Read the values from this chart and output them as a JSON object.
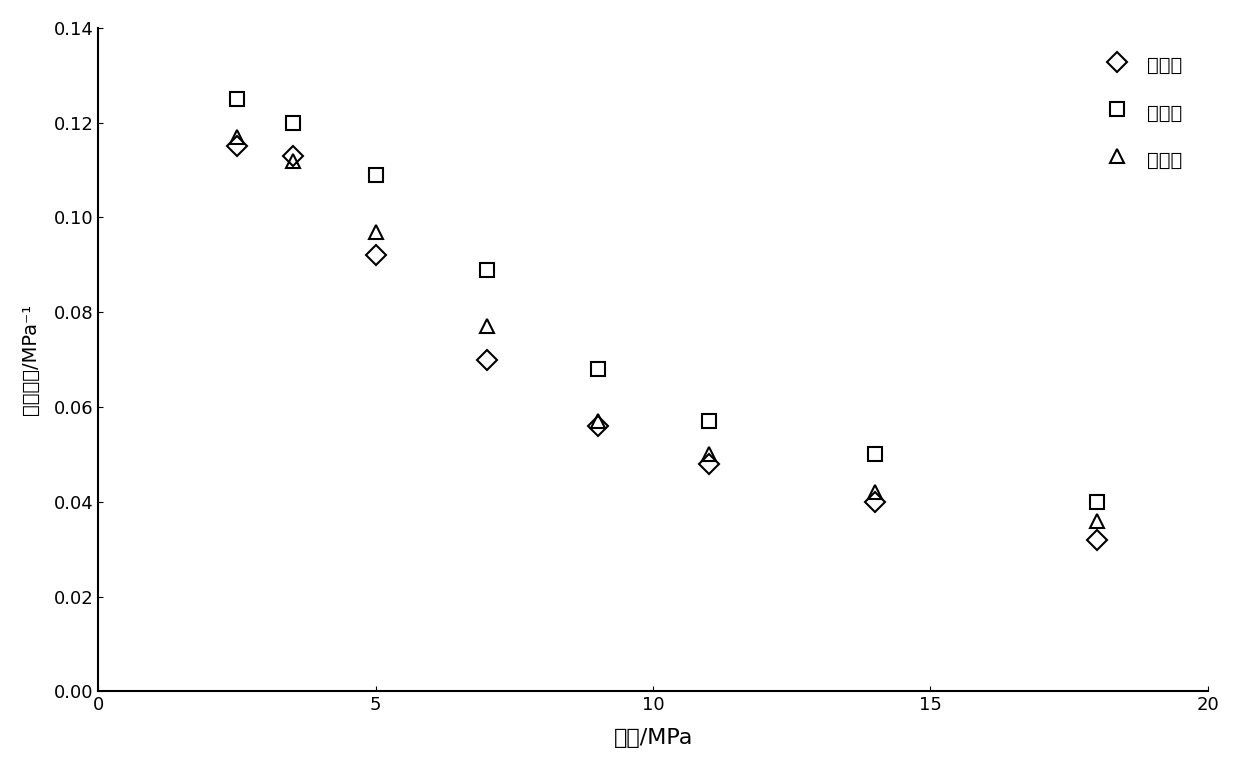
{
  "x_values": [
    2.5,
    3.5,
    5,
    7,
    9,
    11,
    14,
    18
  ],
  "small_pore": [
    0.115,
    0.113,
    0.092,
    0.07,
    0.056,
    0.048,
    0.04,
    0.032
  ],
  "large_pore": [
    0.125,
    0.12,
    0.109,
    0.089,
    0.068,
    0.057,
    0.05,
    0.04
  ],
  "total_pore": [
    0.117,
    0.112,
    0.097,
    0.077,
    0.057,
    0.05,
    0.042,
    0.036
  ],
  "xlabel": "围压/MPa",
  "ylabel": "压缩系数/MPa⁻¹",
  "legend_small": "小孔隙",
  "legend_large": "大孔隙",
  "legend_total": "总孔隙",
  "xlim": [
    0,
    20
  ],
  "ylim": [
    0.0,
    0.14
  ],
  "xticks": [
    0,
    5,
    10,
    15,
    20
  ],
  "yticks": [
    0.0,
    0.02,
    0.04,
    0.06,
    0.08,
    0.1,
    0.12,
    0.14
  ],
  "background_color": "#ffffff",
  "marker_color": "black",
  "marker_size": 10,
  "linewidth": 0
}
